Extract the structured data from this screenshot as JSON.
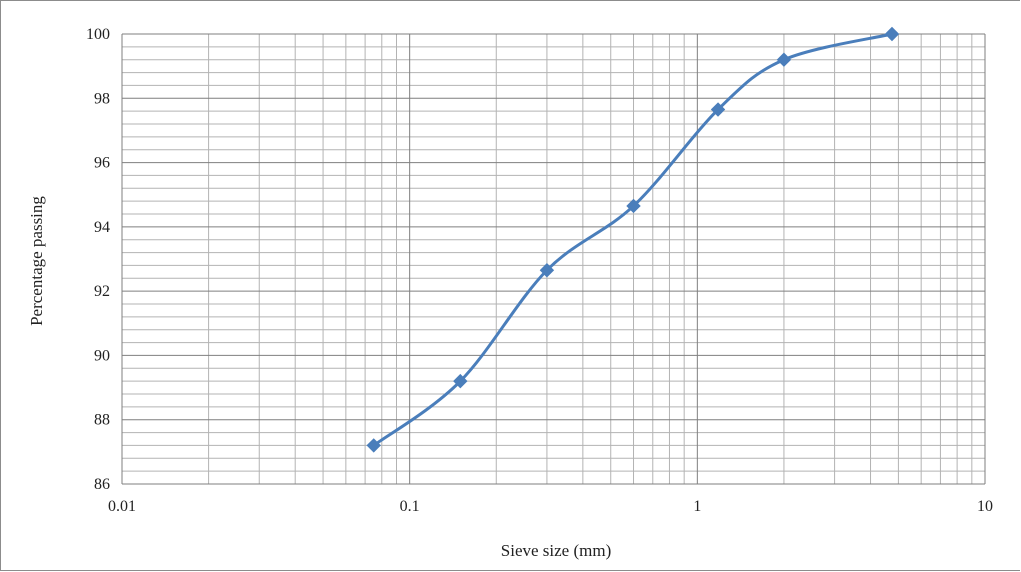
{
  "chart_data": {
    "type": "line",
    "title": "",
    "xlabel": "Sieve size (mm)",
    "ylabel": "Percentage passing",
    "x_scale": "log",
    "xlim": [
      0.01,
      10
    ],
    "ylim": [
      86,
      100
    ],
    "x_tick_labels": [
      "0.01",
      "0.1",
      "1",
      "10"
    ],
    "y_tick_labels": [
      "86",
      "88",
      "90",
      "92",
      "94",
      "96",
      "98",
      "100"
    ],
    "grid": true,
    "legend": "none",
    "series": [
      {
        "color": "#4a7ebb",
        "marker": "diamond",
        "smooth": true,
        "x": [
          0.075,
          0.15,
          0.3,
          0.6,
          1.18,
          2.0,
          4.75
        ],
        "y": [
          87.2,
          89.2,
          92.65,
          94.65,
          97.65,
          99.2,
          100.0
        ]
      }
    ]
  }
}
